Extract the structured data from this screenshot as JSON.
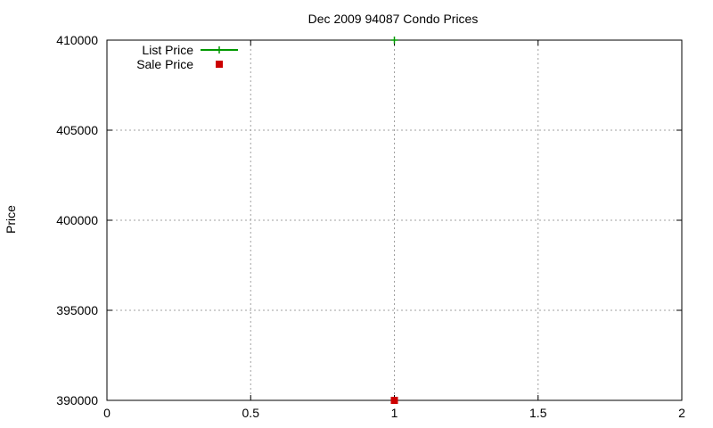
{
  "chart_data": {
    "type": "scatter",
    "title": "Dec 2009 94087 Condo Prices",
    "xlabel": "",
    "ylabel": "Price",
    "xlim": [
      0,
      2
    ],
    "ylim": [
      390000,
      410000
    ],
    "x_ticks": [
      {
        "value": 0,
        "label": "0"
      },
      {
        "value": 0.5,
        "label": "0.5"
      },
      {
        "value": 1,
        "label": "1"
      },
      {
        "value": 1.5,
        "label": "1.5"
      },
      {
        "value": 2,
        "label": "2"
      }
    ],
    "y_ticks": [
      {
        "value": 390000,
        "label": "390000"
      },
      {
        "value": 395000,
        "label": "395000"
      },
      {
        "value": 400000,
        "label": "400000"
      },
      {
        "value": 405000,
        "label": "405000"
      },
      {
        "value": 410000,
        "label": "410000"
      }
    ],
    "grid": true,
    "legend_position": "top-left",
    "series": [
      {
        "name": "List Price",
        "marker": "plus",
        "color": "#009900",
        "points": [
          {
            "x": 1,
            "y": 410000
          }
        ]
      },
      {
        "name": "Sale Price",
        "marker": "square",
        "color": "#cc0000",
        "points": [
          {
            "x": 1,
            "y": 390000
          }
        ]
      }
    ]
  }
}
